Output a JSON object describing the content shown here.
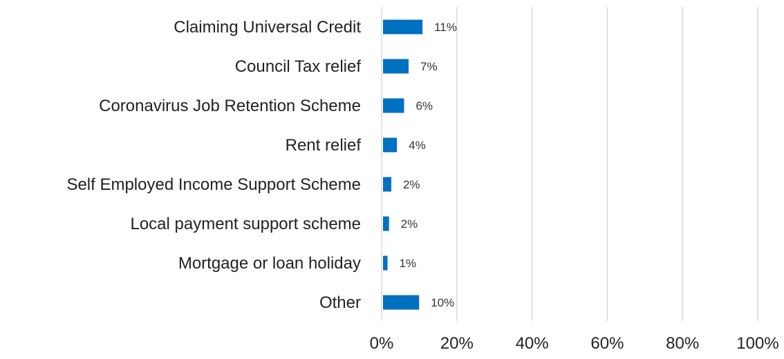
{
  "chart_data": {
    "type": "bar",
    "orientation": "horizontal",
    "categories": [
      "Claiming Universal Credit",
      "Council Tax relief",
      "Coronavirus Job Retention Scheme",
      "Rent relief",
      "Self Employed Income Support Scheme",
      "Local payment support scheme",
      "Mortgage or loan holiday",
      "Other"
    ],
    "values": [
      10.5,
      6.8,
      5.6,
      3.7,
      2.2,
      1.6,
      1.2,
      9.6
    ],
    "data_labels": [
      "11%",
      "7%",
      "6%",
      "4%",
      "2%",
      "2%",
      "1%",
      "10%"
    ],
    "xlim": [
      0,
      100
    ],
    "x_ticks": [
      0,
      20,
      40,
      60,
      80,
      100
    ],
    "x_tick_labels": [
      "0%",
      "20%",
      "40%",
      "60%",
      "80%",
      "100%"
    ],
    "grid": true,
    "legend": "none",
    "bar_color": "#0070c0",
    "grid_color": "#d9d9d9"
  }
}
